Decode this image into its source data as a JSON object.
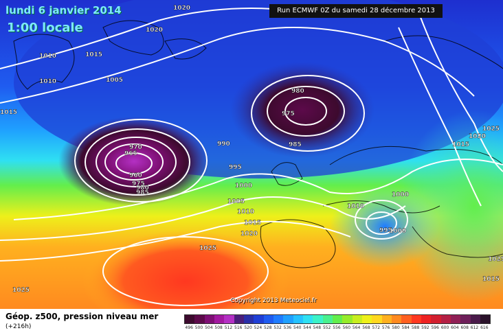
{
  "header": {
    "date_line": "lundi 6 janvier 2014",
    "time_line": "1:00 locale",
    "run_info": "Run ECMWF 0Z du samedi 28 décembre 2013"
  },
  "copyright": "Copyright 2013 Meteociel.fr",
  "footer": {
    "field": "Géop. z500, pression niveau mer",
    "lead": "(+216h)"
  },
  "legend": {
    "ticks": [
      "496",
      "500",
      "504",
      "508",
      "512",
      "516",
      "520",
      "524",
      "528",
      "532",
      "536",
      "540",
      "544",
      "548",
      "552",
      "556",
      "560",
      "564",
      "568",
      "572",
      "576",
      "580",
      "584",
      "588",
      "592",
      "596",
      "600",
      "604",
      "608",
      "612",
      "616"
    ],
    "colors": [
      "#3d0a2e",
      "#5c0a4a",
      "#7e0f74",
      "#a219a0",
      "#b430c4",
      "#4b1e7a",
      "#2a2fa8",
      "#1f3fd6",
      "#1f5cf0",
      "#1f7cff",
      "#1fa0ff",
      "#25c2ff",
      "#2fe0f2",
      "#3bf2c8",
      "#49f08e",
      "#63ee4c",
      "#96ec2a",
      "#c8ee1f",
      "#eef01a",
      "#ffd81f",
      "#ffb01f",
      "#ff8a1f",
      "#ff6020",
      "#ff3820",
      "#ee2222",
      "#d21f2f",
      "#b41f44",
      "#901f55",
      "#6e1f5a",
      "#4a1a4a",
      "#2a122a"
    ]
  },
  "isobars": {
    "labels": [
      "1020",
      "1020",
      "1015",
      "1010",
      "1010",
      "1005",
      "1015",
      "970",
      "965",
      "960",
      "975",
      "980",
      "985",
      "990",
      "980",
      "975",
      "985",
      "995",
      "1000",
      "1005",
      "1010",
      "1015",
      "1020",
      "1025",
      "1025",
      "1010",
      "1000",
      "995",
      "1000",
      "1025",
      "1020",
      "1015",
      "1025",
      "1015"
    ]
  }
}
